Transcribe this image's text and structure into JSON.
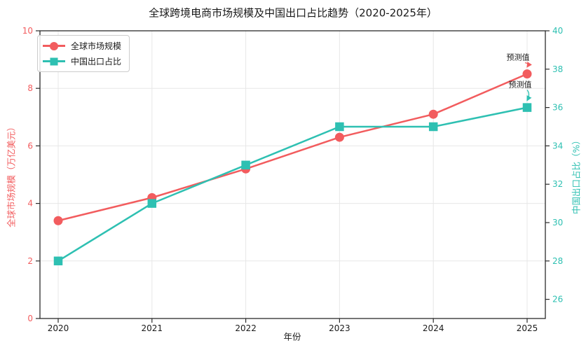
{
  "title": "全球跨境电商市场规模及中国出口占比趋势（2020-2025年）",
  "chart_data": {
    "type": "line",
    "x": [
      "2020",
      "2021",
      "2022",
      "2023",
      "2024",
      "2025"
    ],
    "xlabel": "年份",
    "series": [
      {
        "name": "全球市场规模",
        "axis": "left",
        "color": "#f25c5e",
        "marker": "circle",
        "values": [
          3.4,
          4.2,
          5.2,
          6.3,
          7.1,
          8.5
        ]
      },
      {
        "name": "中国出口占比",
        "axis": "right",
        "color": "#2ec0b2",
        "marker": "square",
        "values": [
          28,
          31,
          33,
          35,
          35,
          36
        ]
      }
    ],
    "left_axis": {
      "label": "全球市场规模（万亿美元）",
      "color": "#f25c5e",
      "ticks": [
        0,
        2,
        4,
        6,
        8,
        10
      ],
      "range": [
        0,
        10
      ]
    },
    "right_axis": {
      "label": "中国出口占比（%）",
      "color": "#2ec0b2",
      "ticks": [
        26,
        28,
        30,
        32,
        34,
        36,
        38,
        40
      ],
      "range": [
        25,
        40
      ]
    },
    "annotations": [
      {
        "text": "预测值",
        "series": 0,
        "x": "2025"
      },
      {
        "text": "预测值",
        "series": 1,
        "x": "2025"
      }
    ],
    "legend": {
      "position": "upper-left"
    },
    "grid": true,
    "colors": {
      "grid": "#e7e7e7",
      "axis": "#2b2b2b",
      "text": "#1a1a1a"
    }
  }
}
